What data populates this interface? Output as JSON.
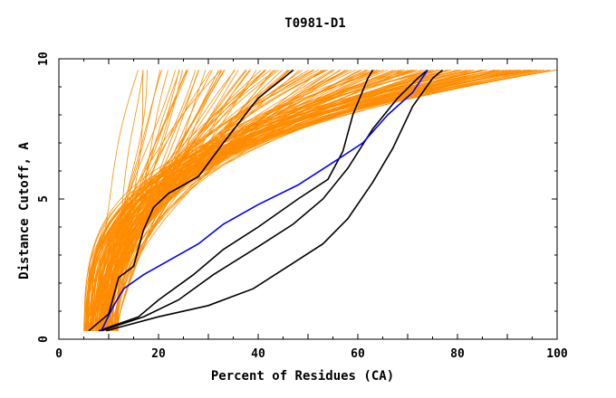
{
  "chart_data": {
    "type": "line",
    "title": "T0981-D1",
    "xlabel": "Percent of Residues (CA)",
    "ylabel": "Distance Cutoff, A",
    "xlim": [
      0,
      100
    ],
    "ylim": [
      0,
      10
    ],
    "x_ticks": [
      0,
      20,
      40,
      60,
      80,
      100
    ],
    "y_ticks": [
      0,
      5,
      10
    ],
    "grid": false,
    "legend": "none",
    "colors": {
      "background_series": "#ff8c00",
      "highlight_series": "#000000",
      "reference_series": "#0000ff",
      "axes": "#000000"
    },
    "background_family": {
      "count": 150,
      "x_start_range": [
        5,
        12
      ],
      "x_end_range": [
        16,
        100
      ],
      "y_range": [
        0.3,
        9.6
      ]
    },
    "highlight_series": [
      {
        "points": [
          [
            6.0,
            0.3
          ],
          [
            10,
            0.9
          ],
          [
            12,
            2.2
          ],
          [
            15,
            2.6
          ],
          [
            17,
            3.9
          ],
          [
            19,
            4.7
          ],
          [
            22,
            5.2
          ],
          [
            28,
            5.8
          ],
          [
            33,
            7.0
          ],
          [
            40,
            8.6
          ],
          [
            45,
            9.3
          ],
          [
            47,
            9.6
          ]
        ]
      },
      {
        "points": [
          [
            8.0,
            0.3
          ],
          [
            16,
            0.8
          ],
          [
            20,
            1.4
          ],
          [
            27,
            2.3
          ],
          [
            33,
            3.2
          ],
          [
            40,
            4.0
          ],
          [
            48,
            5.0
          ],
          [
            54,
            5.7
          ],
          [
            57,
            6.7
          ],
          [
            59,
            8.0
          ],
          [
            62,
            9.3
          ],
          [
            63,
            9.6
          ]
        ]
      },
      {
        "points": [
          [
            8.5,
            0.3
          ],
          [
            17,
            0.8
          ],
          [
            24,
            1.4
          ],
          [
            31,
            2.3
          ],
          [
            40,
            3.3
          ],
          [
            47,
            4.1
          ],
          [
            53,
            5.0
          ],
          [
            58,
            6.1
          ],
          [
            63,
            7.5
          ],
          [
            68,
            8.6
          ],
          [
            72,
            9.3
          ],
          [
            74,
            9.6
          ]
        ]
      },
      {
        "points": [
          [
            9.5,
            0.3
          ],
          [
            20,
            0.8
          ],
          [
            30,
            1.2
          ],
          [
            39,
            1.8
          ],
          [
            46,
            2.6
          ],
          [
            53,
            3.4
          ],
          [
            58,
            4.3
          ],
          [
            63,
            5.6
          ],
          [
            67,
            6.8
          ],
          [
            71,
            8.3
          ],
          [
            75,
            9.3
          ],
          [
            77,
            9.6
          ]
        ]
      }
    ],
    "reference_series": [
      {
        "points": [
          [
            8.5,
            0.3
          ],
          [
            11,
            1.2
          ],
          [
            13,
            1.8
          ],
          [
            17,
            2.3
          ],
          [
            22,
            2.8
          ],
          [
            28,
            3.4
          ],
          [
            33,
            4.1
          ],
          [
            40,
            4.8
          ],
          [
            48,
            5.5
          ],
          [
            55,
            6.3
          ],
          [
            61,
            7.0
          ],
          [
            66,
            8.0
          ],
          [
            71,
            8.8
          ],
          [
            74,
            9.6
          ]
        ]
      }
    ]
  }
}
